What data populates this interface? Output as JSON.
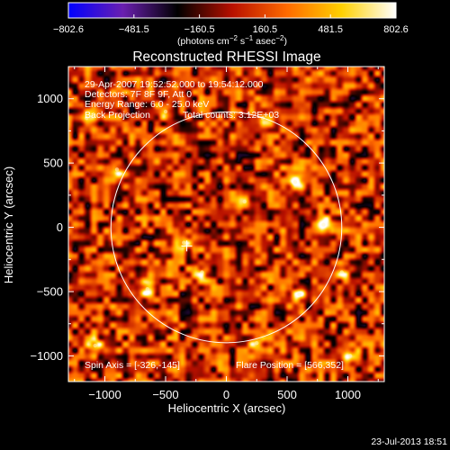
{
  "chart_data": {
    "type": "heatmap",
    "title": "Reconstructed RHESSI Image",
    "xlabel": "Heliocentric X (arcsec)",
    "ylabel": "Heliocentric Y (arcsec)",
    "xlim": [
      -1300,
      1300
    ],
    "ylim": [
      -1200,
      1250
    ],
    "x_ticks": [
      -1000,
      -500,
      0,
      500,
      1000
    ],
    "y_ticks": [
      -1000,
      -500,
      0,
      500,
      1000
    ],
    "x_tick_labels": [
      "−1000",
      "−500",
      "0",
      "500",
      "1000"
    ],
    "y_tick_labels": [
      "−1000",
      "−500",
      "0",
      "500",
      "1000"
    ],
    "grid": false,
    "colorbar": {
      "min": -802.6,
      "max": 802.6,
      "tick_values": [
        -802.6,
        -481.5,
        -160.5,
        160.5,
        481.5,
        802.6
      ],
      "tick_labels": [
        "−802.6",
        "−481.5",
        "−160.5",
        "160.5",
        "481.5",
        "802.6"
      ],
      "units_prefix": "(photons cm",
      "units_exp1": "−2",
      "units_mid": " s",
      "units_exp2": "−1",
      "units_mid2": " asec",
      "units_exp3": "−2",
      "units_suffix": ")",
      "colors": [
        "#0000ff",
        "#6a1fb0",
        "#000000",
        "#b81000",
        "#ff6a00",
        "#ffd000",
        "#ffffff"
      ]
    },
    "annotations": {
      "time_range": "29-Apr-2007 19:52:52.000 to 19:54:12.000",
      "detectors": "Detectors: 7F 8F 9F, Att 0",
      "energy_range": "Energy Range: 6.0 - 25.0 keV",
      "method": "Back Projection",
      "total_counts": "Total counts: 3.12E+03",
      "spin_axis": "Spin Axis = [-326,-145]",
      "flare_position": "Flare Position = [566,352]"
    },
    "solar_limb": {
      "center": [
        0,
        0
      ],
      "radius": 950
    },
    "marker": {
      "x": -326,
      "y": -145,
      "shape": "plus"
    },
    "bright_sources": [
      {
        "x": 566,
        "y": 352,
        "value": 760
      },
      {
        "x": 800,
        "y": 20,
        "value": 720
      },
      {
        "x": -650,
        "y": -480,
        "value": 700
      },
      {
        "x": -350,
        "y": -120,
        "value": 650
      },
      {
        "x": -1080,
        "y": -920,
        "value": 640
      },
      {
        "x": 1020,
        "y": -1000,
        "value": 620
      },
      {
        "x": -1150,
        "y": 850,
        "value": 600
      },
      {
        "x": 600,
        "y": -520,
        "value": 600
      },
      {
        "x": 300,
        "y": 850,
        "value": 520
      },
      {
        "x": -200,
        "y": -350,
        "value": 540
      },
      {
        "x": 950,
        "y": -350,
        "value": 560
      },
      {
        "x": -900,
        "y": 450,
        "value": 520
      },
      {
        "x": 150,
        "y": 200,
        "value": 480
      },
      {
        "x": -500,
        "y": 900,
        "value": 500
      },
      {
        "x": 250,
        "y": -900,
        "value": 500
      }
    ]
  },
  "footer": {
    "date": "23-Jul-2013 18:51"
  }
}
